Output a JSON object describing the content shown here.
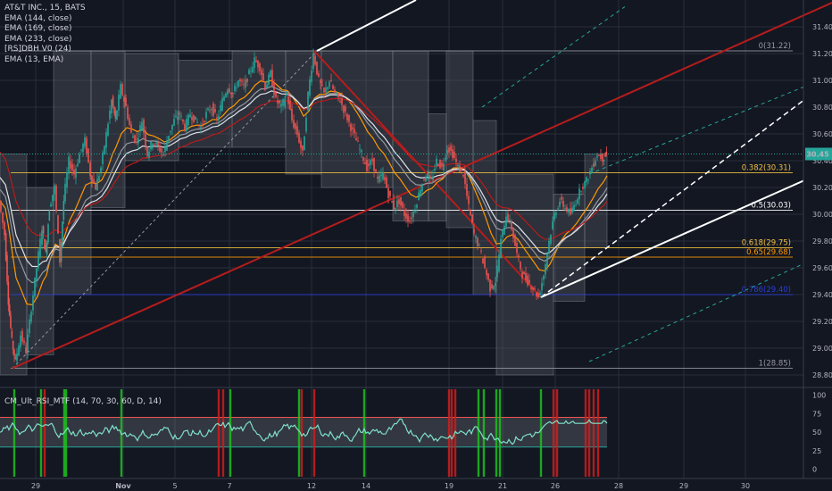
{
  "header": {
    "symbol_title": "AT&T INC., 15, BATS",
    "indicators": [
      "EMA (144, close)",
      "EMA (169, close)",
      "EMA (233, close)",
      "[RS]DBH V0 (24)",
      "EMA (13, EMA)"
    ]
  },
  "sub_panel": {
    "title": "CM_Ult_RSI_MTF (14, 70, 30, 60, D, 14)",
    "ticks": [
      "100",
      "75",
      "50",
      "25",
      "0"
    ]
  },
  "chart_data": {
    "type": "candlestick",
    "instrument": "AT&T INC.",
    "timeframe": "15",
    "exchange": "BATS",
    "last_price": "30.45",
    "y_ticks": [
      "31.40",
      "31.20",
      "31.00",
      "30.80",
      "30.60",
      "30.40",
      "30.20",
      "30.00",
      "29.80",
      "29.60",
      "29.40",
      "29.20",
      "29.00",
      "28.80"
    ],
    "ylim": [
      28.72,
      31.6
    ],
    "x_ticks": [
      "29",
      "Nov",
      "5",
      "7",
      "12",
      "14",
      "19",
      "21",
      "26",
      "28",
      "29",
      "30"
    ],
    "fib_levels": [
      {
        "label": "0(31.22)",
        "value": 31.22,
        "color": "#9598a1"
      },
      {
        "label": "0.382(30.31)",
        "value": 30.31,
        "color": "#f0c040"
      },
      {
        "label": "0.5(30.03)",
        "value": 30.03,
        "color": "#ffffff"
      },
      {
        "label": "0.618(29.75)",
        "value": 29.75,
        "color": "#f0c040"
      },
      {
        "label": "0.65(29.68)",
        "value": 29.68,
        "color": "#ff9800"
      },
      {
        "label": "0.786(29.40)",
        "value": 29.4,
        "color": "#2a3fd8"
      },
      {
        "label": "1(28.85)",
        "value": 28.85,
        "color": "#9598a1"
      }
    ],
    "price_path": [
      [
        0,
        30.1
      ],
      [
        6,
        29.85
      ],
      [
        10,
        29.35
      ],
      [
        14,
        29.05
      ],
      [
        18,
        28.9
      ],
      [
        24,
        29.1
      ],
      [
        30,
        28.98
      ],
      [
        36,
        29.3
      ],
      [
        42,
        29.6
      ],
      [
        48,
        29.9
      ],
      [
        52,
        29.7
      ],
      [
        56,
        30.05
      ],
      [
        62,
        30.2
      ],
      [
        68,
        29.65
      ],
      [
        72,
        30.1
      ],
      [
        78,
        30.4
      ],
      [
        84,
        30.3
      ],
      [
        90,
        30.45
      ],
      [
        96,
        30.55
      ],
      [
        102,
        30.3
      ],
      [
        108,
        30.2
      ],
      [
        114,
        30.35
      ],
      [
        120,
        30.6
      ],
      [
        126,
        30.85
      ],
      [
        130,
        30.7
      ],
      [
        136,
        30.95
      ],
      [
        142,
        30.8
      ],
      [
        148,
        30.6
      ],
      [
        154,
        30.55
      ],
      [
        160,
        30.7
      ],
      [
        166,
        30.45
      ],
      [
        172,
        30.55
      ],
      [
        178,
        30.5
      ],
      [
        184,
        30.45
      ],
      [
        190,
        30.6
      ],
      [
        196,
        30.7
      ],
      [
        202,
        30.75
      ],
      [
        208,
        30.65
      ],
      [
        214,
        30.75
      ],
      [
        220,
        30.7
      ],
      [
        226,
        30.65
      ],
      [
        232,
        30.75
      ],
      [
        238,
        30.8
      ],
      [
        244,
        30.7
      ],
      [
        250,
        30.85
      ],
      [
        256,
        30.95
      ],
      [
        262,
        30.9
      ],
      [
        268,
        31.0
      ],
      [
        274,
        30.95
      ],
      [
        280,
        31.05
      ],
      [
        286,
        31.15
      ],
      [
        292,
        31.1
      ],
      [
        298,
        30.95
      ],
      [
        304,
        31.05
      ],
      [
        310,
        30.85
      ],
      [
        316,
        30.8
      ],
      [
        322,
        30.9
      ],
      [
        328,
        30.7
      ],
      [
        334,
        30.6
      ],
      [
        340,
        30.45
      ],
      [
        346,
        30.9
      ],
      [
        352,
        31.2
      ],
      [
        358,
        31.0
      ],
      [
        364,
        30.9
      ],
      [
        370,
        31.0
      ],
      [
        376,
        30.9
      ],
      [
        382,
        30.85
      ],
      [
        388,
        30.75
      ],
      [
        394,
        30.65
      ],
      [
        400,
        30.55
      ],
      [
        406,
        30.45
      ],
      [
        412,
        30.35
      ],
      [
        418,
        30.4
      ],
      [
        424,
        30.25
      ],
      [
        430,
        30.3
      ],
      [
        436,
        30.15
      ],
      [
        442,
        30.05
      ],
      [
        448,
        30.1
      ],
      [
        454,
        30.0
      ],
      [
        460,
        29.95
      ],
      [
        466,
        30.05
      ],
      [
        472,
        30.2
      ],
      [
        478,
        30.3
      ],
      [
        484,
        30.25
      ],
      [
        490,
        30.4
      ],
      [
        496,
        30.35
      ],
      [
        502,
        30.5
      ],
      [
        508,
        30.45
      ],
      [
        514,
        30.35
      ],
      [
        520,
        30.3
      ],
      [
        526,
        30.05
      ],
      [
        532,
        29.85
      ],
      [
        538,
        29.75
      ],
      [
        544,
        29.6
      ],
      [
        550,
        29.45
      ],
      [
        556,
        29.5
      ],
      [
        562,
        29.8
      ],
      [
        568,
        30.0
      ],
      [
        574,
        29.9
      ],
      [
        580,
        29.7
      ],
      [
        586,
        29.55
      ],
      [
        592,
        29.5
      ],
      [
        598,
        29.45
      ],
      [
        604,
        29.38
      ],
      [
        610,
        29.55
      ],
      [
        616,
        29.8
      ],
      [
        622,
        30.0
      ],
      [
        628,
        30.1
      ],
      [
        634,
        30.05
      ],
      [
        640,
        30.0
      ],
      [
        646,
        30.1
      ],
      [
        652,
        30.2
      ],
      [
        658,
        30.25
      ],
      [
        664,
        30.35
      ],
      [
        670,
        30.45
      ],
      [
        676,
        30.42
      ],
      [
        680,
        30.45
      ]
    ],
    "rsi_panel": {
      "ylim": [
        -10,
        108
      ],
      "upper": 70,
      "lower": 30
    }
  }
}
